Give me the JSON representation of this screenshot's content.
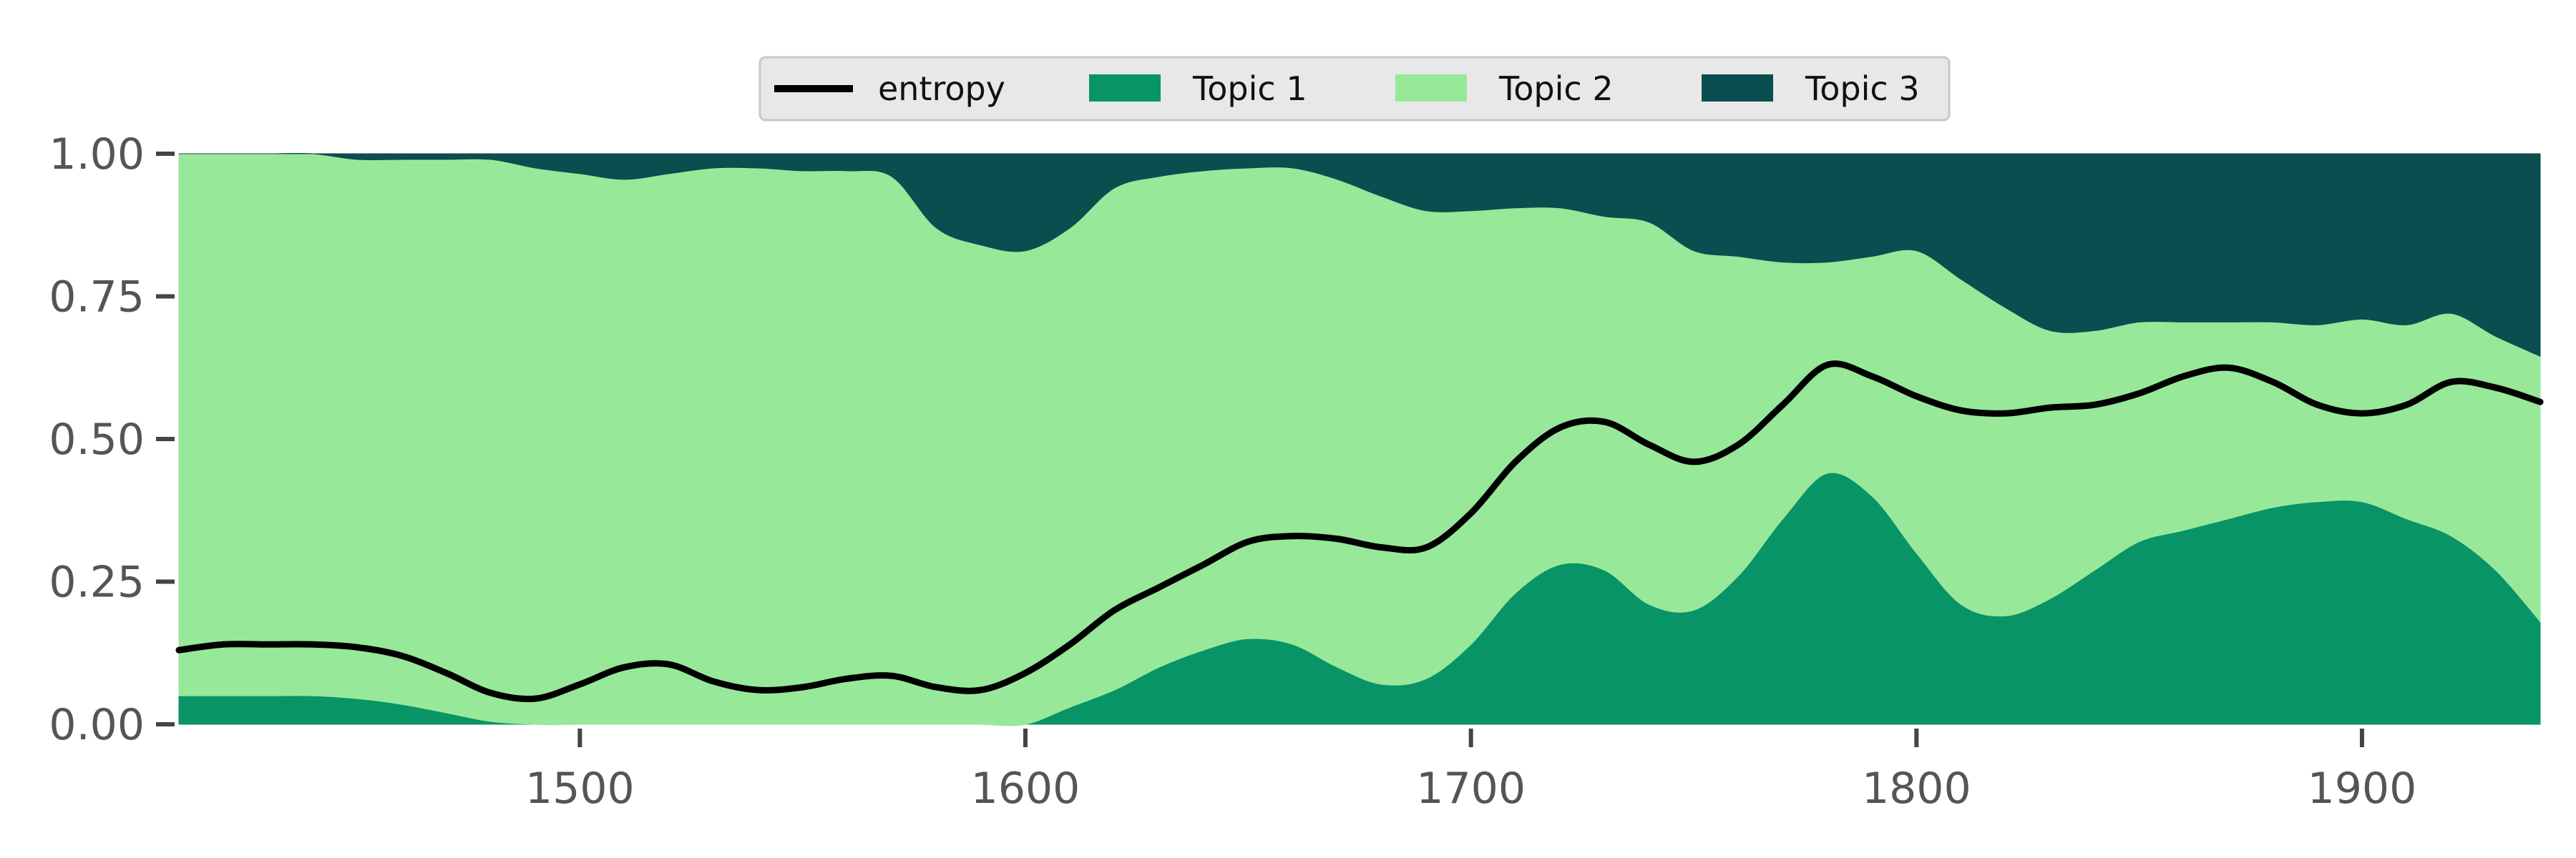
{
  "chart_data": {
    "type": "area",
    "stacked": true,
    "x": [
      1410,
      1420,
      1430,
      1440,
      1450,
      1460,
      1470,
      1480,
      1490,
      1500,
      1510,
      1520,
      1530,
      1540,
      1550,
      1560,
      1570,
      1580,
      1590,
      1600,
      1610,
      1620,
      1630,
      1640,
      1650,
      1660,
      1670,
      1680,
      1690,
      1700,
      1710,
      1720,
      1730,
      1740,
      1750,
      1760,
      1770,
      1780,
      1790,
      1800,
      1810,
      1820,
      1830,
      1840,
      1850,
      1860,
      1870,
      1880,
      1890,
      1900,
      1910,
      1920,
      1930,
      1940
    ],
    "series": [
      {
        "name": "Topic 1",
        "color": "#089467",
        "values": [
          0.05,
          0.05,
          0.05,
          0.05,
          0.045,
          0.035,
          0.02,
          0.005,
          0,
          0,
          0,
          0,
          0,
          0,
          0,
          0,
          0,
          0,
          0,
          0,
          0.03,
          0.06,
          0.1,
          0.13,
          0.15,
          0.14,
          0.1,
          0.07,
          0.08,
          0.14,
          0.23,
          0.28,
          0.27,
          0.21,
          0.2,
          0.26,
          0.36,
          0.44,
          0.4,
          0.3,
          0.21,
          0.19,
          0.22,
          0.27,
          0.32,
          0.34,
          0.36,
          0.38,
          0.39,
          0.39,
          0.36,
          0.33,
          0.27,
          0.18
        ]
      },
      {
        "name": "Topic 2",
        "color": "#98e89a",
        "values": [
          0.95,
          0.95,
          0.95,
          0.95,
          0.945,
          0.955,
          0.97,
          0.985,
          0.975,
          0.965,
          0.955,
          0.965,
          0.975,
          0.975,
          0.97,
          0.97,
          0.96,
          0.87,
          0.84,
          0.83,
          0.84,
          0.88,
          0.86,
          0.84,
          0.825,
          0.835,
          0.855,
          0.855,
          0.82,
          0.76,
          0.675,
          0.625,
          0.62,
          0.67,
          0.63,
          0.56,
          0.45,
          0.37,
          0.42,
          0.53,
          0.57,
          0.54,
          0.47,
          0.42,
          0.385,
          0.365,
          0.345,
          0.325,
          0.31,
          0.32,
          0.34,
          0.39,
          0.41,
          0.465
        ]
      },
      {
        "name": "Topic 3",
        "color": "#0b4e4f",
        "values": [
          0,
          0,
          0,
          0,
          0.01,
          0.01,
          0.01,
          0.01,
          0.025,
          0.035,
          0.045,
          0.035,
          0.025,
          0.025,
          0.03,
          0.03,
          0.04,
          0.13,
          0.16,
          0.17,
          0.13,
          0.06,
          0.04,
          0.03,
          0.025,
          0.025,
          0.045,
          0.075,
          0.1,
          0.1,
          0.095,
          0.095,
          0.11,
          0.12,
          0.17,
          0.18,
          0.19,
          0.19,
          0.18,
          0.17,
          0.22,
          0.27,
          0.31,
          0.31,
          0.295,
          0.295,
          0.295,
          0.295,
          0.3,
          0.29,
          0.3,
          0.28,
          0.32,
          0.355
        ]
      }
    ],
    "lines": [
      {
        "name": "entropy",
        "color": "#000000",
        "values": [
          0.13,
          0.14,
          0.14,
          0.14,
          0.135,
          0.12,
          0.09,
          0.055,
          0.045,
          0.07,
          0.1,
          0.105,
          0.075,
          0.06,
          0.065,
          0.08,
          0.085,
          0.065,
          0.06,
          0.09,
          0.14,
          0.2,
          0.24,
          0.28,
          0.32,
          0.33,
          0.325,
          0.31,
          0.31,
          0.37,
          0.46,
          0.52,
          0.53,
          0.49,
          0.46,
          0.49,
          0.56,
          0.63,
          0.61,
          0.575,
          0.55,
          0.545,
          0.555,
          0.56,
          0.58,
          0.61,
          0.625,
          0.6,
          0.56,
          0.545,
          0.56,
          0.6,
          0.59,
          0.565
        ]
      }
    ],
    "xlim": [
      1410,
      1940
    ],
    "ylim": [
      0,
      1
    ],
    "xticks": [
      1500,
      1600,
      1700,
      1800,
      1900
    ],
    "yticks": [
      0,
      0.25,
      0.5,
      0.75,
      1
    ],
    "xtick_labels": [
      "1500",
      "1600",
      "1700",
      "1800",
      "1900"
    ],
    "ytick_labels": [
      "0.00",
      "0.25",
      "0.50",
      "0.75",
      "1.00"
    ],
    "legend_placement": "top-center",
    "legend": [
      {
        "label": "entropy",
        "kind": "line",
        "color": "#000000"
      },
      {
        "label": "Topic 1",
        "kind": "patch",
        "color": "#089467"
      },
      {
        "label": "Topic 2",
        "kind": "patch",
        "color": "#98e89a"
      },
      {
        "label": "Topic 3",
        "kind": "patch",
        "color": "#0b4e4f"
      }
    ],
    "grid": false,
    "title": "",
    "xlabel": "",
    "ylabel": ""
  }
}
